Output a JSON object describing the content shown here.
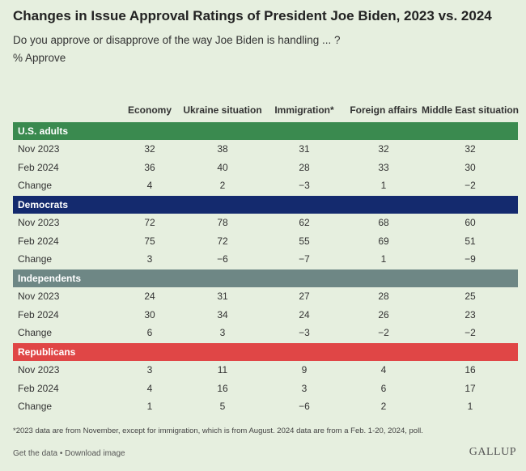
{
  "title": "Changes in Issue Approval Ratings of President Joe Biden, 2023 vs. 2024",
  "subtitle": "Do you approve or disapprove of the way Joe Biden is handling ... ?",
  "units": "% Approve",
  "columns": [
    "Economy",
    "Ukraine situation",
    "Immigration*",
    "Foreign affairs",
    "Middle East situation"
  ],
  "footnote": "*2023 data are from November, except for immigration, which is from August. 2024 data are from a Feb. 1-20, 2024, poll.",
  "links": {
    "get_data": "Get the data",
    "separator": " • ",
    "download": "Download image"
  },
  "brand": "GALLUP",
  "chart_data": {
    "type": "table",
    "columns": [
      "Economy",
      "Ukraine situation",
      "Immigration*",
      "Foreign affairs",
      "Middle East situation"
    ],
    "groups": [
      {
        "name": "U.S. adults",
        "color": "#3a8a4f",
        "rows": [
          {
            "label": "Nov 2023",
            "values": [
              "32",
              "38",
              "31",
              "32",
              "32"
            ]
          },
          {
            "label": "Feb 2024",
            "values": [
              "36",
              "40",
              "28",
              "33",
              "30"
            ]
          },
          {
            "label": "Change",
            "values": [
              "4",
              "2",
              "−3",
              "1",
              "−2"
            ]
          }
        ]
      },
      {
        "name": "Democrats",
        "color": "#142a6e",
        "rows": [
          {
            "label": "Nov 2023",
            "values": [
              "72",
              "78",
              "62",
              "68",
              "60"
            ]
          },
          {
            "label": "Feb 2024",
            "values": [
              "75",
              "72",
              "55",
              "69",
              "51"
            ]
          },
          {
            "label": "Change",
            "values": [
              "3",
              "−6",
              "−7",
              "1",
              "−9"
            ]
          }
        ]
      },
      {
        "name": "Independents",
        "color": "#6e8785",
        "rows": [
          {
            "label": "Nov 2023",
            "values": [
              "24",
              "31",
              "27",
              "28",
              "25"
            ]
          },
          {
            "label": "Feb 2024",
            "values": [
              "30",
              "34",
              "24",
              "26",
              "23"
            ]
          },
          {
            "label": "Change",
            "values": [
              "6",
              "3",
              "−3",
              "−2",
              "−2"
            ]
          }
        ]
      },
      {
        "name": "Republicans",
        "color": "#e04646",
        "rows": [
          {
            "label": "Nov 2023",
            "values": [
              "3",
              "11",
              "9",
              "4",
              "16"
            ]
          },
          {
            "label": "Feb 2024",
            "values": [
              "4",
              "16",
              "3",
              "6",
              "17"
            ]
          },
          {
            "label": "Change",
            "values": [
              "1",
              "5",
              "−6",
              "2",
              "1"
            ]
          }
        ]
      }
    ]
  }
}
